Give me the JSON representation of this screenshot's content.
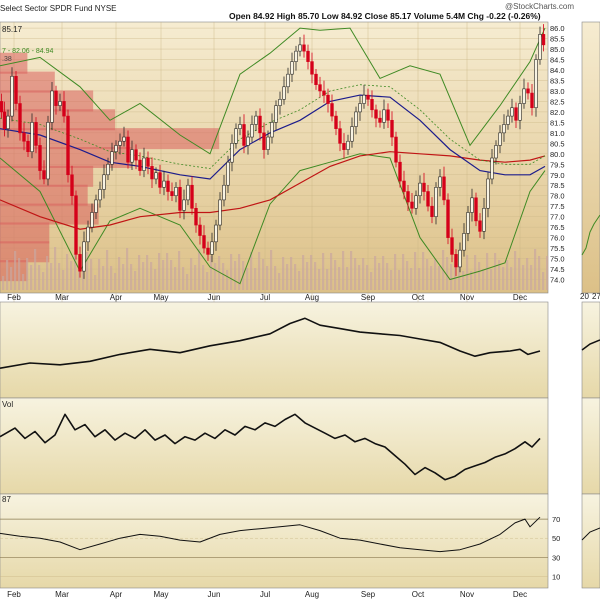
{
  "header": {
    "title": "Select Sector SPDR Fund",
    "exchange": "NYSE",
    "quote": "Open 84.92  High 85.70  Low 84.92  Close 85.17  Volume 5.4M  Chg -0.22 (-0.26%)",
    "watermark": "@StockCharts.com",
    "last_price": "85.17",
    "bb_legend": "7 - 82.06 - 84.94",
    "bb_legend_prefix": ".38"
  },
  "panels": {
    "obv_label": "",
    "vol_label": "Vol",
    "rsi_label": "87"
  },
  "colors": {
    "panel_bg_top": "#f5e9c8",
    "panel_bg_bottom": "#e3c98c",
    "up_candle": "#2a2a2a",
    "down_candle": "#d5001a",
    "bb_color": "#3f8a24",
    "ma_fast": "#1c1c8c",
    "ma_slow": "#c01515",
    "volume_profile": "#d8605c"
  },
  "chart_data": [
    {
      "type": "candlestick",
      "name": "price",
      "x_axis": [
        "Feb",
        "Mar",
        "Apr",
        "May",
        "Jun",
        "Jul",
        "Aug",
        "Sep",
        "Oct",
        "Nov",
        "Dec"
      ],
      "y_axis": [
        "74.0",
        "74.5",
        "75.0",
        "75.5",
        "76.0",
        "76.5",
        "77.0",
        "77.5",
        "78.0",
        "78.5",
        "79.0",
        "79.5",
        "80.0",
        "80.5",
        "81.0",
        "81.5",
        "82.0",
        "82.5",
        "83.0",
        "83.5",
        "84.0",
        "84.5",
        "85.0",
        "85.5",
        "86.0"
      ],
      "ylim": [
        73.5,
        86.1
      ],
      "close_path": [
        [
          0,
          82.5
        ],
        [
          3,
          82.0
        ],
        [
          6,
          81.2
        ],
        [
          10,
          81.8
        ],
        [
          14,
          83.7
        ],
        [
          18,
          82.4
        ],
        [
          22,
          81.0
        ],
        [
          26,
          80.6
        ],
        [
          30,
          80.1
        ],
        [
          34,
          81.5
        ],
        [
          38,
          80.4
        ],
        [
          42,
          79.2
        ],
        [
          46,
          78.8
        ],
        [
          50,
          81.5
        ],
        [
          54,
          83.0
        ],
        [
          58,
          82.3
        ],
        [
          62,
          82.5
        ],
        [
          66,
          81.8
        ],
        [
          70,
          79.0
        ],
        [
          74,
          78.0
        ],
        [
          78,
          75.2
        ],
        [
          82,
          74.4
        ],
        [
          86,
          75.8
        ],
        [
          90,
          76.5
        ],
        [
          94,
          77.2
        ],
        [
          98,
          77.8
        ],
        [
          102,
          78.3
        ],
        [
          106,
          79.0
        ],
        [
          110,
          79.5
        ],
        [
          114,
          80.1
        ],
        [
          118,
          80.4
        ],
        [
          122,
          80.6
        ],
        [
          126,
          80.8
        ],
        [
          130,
          79.6
        ],
        [
          134,
          80.2
        ],
        [
          138,
          79.7
        ],
        [
          142,
          79.2
        ],
        [
          146,
          79.8
        ],
        [
          150,
          79.4
        ],
        [
          154,
          78.8
        ],
        [
          158,
          79.1
        ],
        [
          162,
          78.4
        ],
        [
          166,
          78.7
        ],
        [
          170,
          78.2
        ],
        [
          174,
          78.0
        ],
        [
          178,
          78.4
        ],
        [
          182,
          77.3
        ],
        [
          186,
          77.8
        ],
        [
          190,
          78.5
        ],
        [
          194,
          77.4
        ],
        [
          198,
          76.6
        ],
        [
          202,
          76.1
        ],
        [
          206,
          75.5
        ],
        [
          210,
          75.2
        ],
        [
          214,
          75.8
        ],
        [
          218,
          76.6
        ],
        [
          222,
          77.8
        ],
        [
          226,
          78.5
        ],
        [
          230,
          79.6
        ],
        [
          234,
          80.5
        ],
        [
          238,
          81.2
        ],
        [
          242,
          81.4
        ],
        [
          246,
          80.4
        ],
        [
          250,
          80.8
        ],
        [
          254,
          81.4
        ],
        [
          258,
          81.8
        ],
        [
          262,
          81.0
        ],
        [
          266,
          80.2
        ],
        [
          270,
          80.8
        ],
        [
          274,
          81.5
        ],
        [
          278,
          82.3
        ],
        [
          282,
          82.6
        ],
        [
          286,
          83.2
        ],
        [
          290,
          83.8
        ],
        [
          294,
          84.4
        ],
        [
          298,
          84.9
        ],
        [
          302,
          85.2
        ],
        [
          306,
          84.9
        ],
        [
          310,
          84.4
        ],
        [
          314,
          83.8
        ],
        [
          318,
          83.3
        ],
        [
          322,
          83.0
        ],
        [
          326,
          82.8
        ],
        [
          330,
          82.4
        ],
        [
          334,
          81.8
        ],
        [
          338,
          81.2
        ],
        [
          342,
          80.5
        ],
        [
          346,
          80.2
        ],
        [
          350,
          80.6
        ],
        [
          354,
          81.3
        ],
        [
          358,
          82.0
        ],
        [
          362,
          82.4
        ],
        [
          366,
          82.8
        ],
        [
          370,
          82.6
        ],
        [
          374,
          82.1
        ],
        [
          378,
          81.7
        ],
        [
          382,
          81.5
        ],
        [
          386,
          82.1
        ],
        [
          390,
          81.6
        ],
        [
          394,
          80.8
        ],
        [
          398,
          79.6
        ],
        [
          402,
          78.7
        ],
        [
          406,
          78.2
        ],
        [
          410,
          77.7
        ],
        [
          414,
          77.4
        ],
        [
          418,
          78.0
        ],
        [
          422,
          78.6
        ],
        [
          426,
          78.2
        ],
        [
          430,
          77.5
        ],
        [
          434,
          77.0
        ],
        [
          438,
          78.4
        ],
        [
          442,
          78.9
        ],
        [
          446,
          77.8
        ],
        [
          450,
          76.0
        ],
        [
          454,
          75.2
        ],
        [
          458,
          74.6
        ],
        [
          462,
          75.4
        ],
        [
          466,
          76.2
        ],
        [
          470,
          77.2
        ],
        [
          474,
          77.9
        ],
        [
          478,
          76.8
        ],
        [
          482,
          76.3
        ],
        [
          486,
          77.4
        ],
        [
          490,
          78.8
        ],
        [
          494,
          79.8
        ],
        [
          498,
          80.4
        ],
        [
          502,
          81.0
        ],
        [
          506,
          81.4
        ],
        [
          510,
          81.8
        ],
        [
          514,
          82.2
        ],
        [
          518,
          81.6
        ],
        [
          522,
          82.4
        ],
        [
          526,
          83.1
        ],
        [
          530,
          82.9
        ],
        [
          534,
          82.2
        ],
        [
          538,
          84.5
        ],
        [
          542,
          85.7
        ],
        [
          545,
          85.2
        ]
      ],
      "bollinger_upper": [
        [
          0,
          84.2
        ],
        [
          40,
          84.6
        ],
        [
          80,
          83.2
        ],
        [
          110,
          81.6
        ],
        [
          140,
          82.4
        ],
        [
          180,
          80.9
        ],
        [
          210,
          80.0
        ],
        [
          240,
          83.8
        ],
        [
          270,
          84.8
        ],
        [
          300,
          86.0
        ],
        [
          320,
          85.9
        ],
        [
          350,
          86.0
        ],
        [
          380,
          83.6
        ],
        [
          410,
          84.2
        ],
        [
          440,
          83.8
        ],
        [
          470,
          80.4
        ],
        [
          500,
          82.3
        ],
        [
          530,
          84.4
        ],
        [
          545,
          86.0
        ]
      ],
      "bollinger_lower": [
        [
          0,
          79.8
        ],
        [
          40,
          78.2
        ],
        [
          80,
          74.4
        ],
        [
          110,
          76.8
        ],
        [
          140,
          77.4
        ],
        [
          180,
          76.6
        ],
        [
          210,
          74.6
        ],
        [
          240,
          73.8
        ],
        [
          270,
          77.6
        ],
        [
          300,
          79.2
        ],
        [
          330,
          79.6
        ],
        [
          360,
          80.0
        ],
        [
          390,
          79.8
        ],
        [
          420,
          76.0
        ],
        [
          450,
          74.0
        ],
        [
          480,
          74.4
        ],
        [
          505,
          74.8
        ],
        [
          530,
          78.2
        ],
        [
          545,
          79.2
        ]
      ],
      "ma_fast_path": [
        [
          0,
          81.2
        ],
        [
          40,
          80.9
        ],
        [
          80,
          80.2
        ],
        [
          110,
          79.6
        ],
        [
          140,
          79.4
        ],
        [
          180,
          79.0
        ],
        [
          210,
          78.8
        ],
        [
          240,
          80.2
        ],
        [
          270,
          81.0
        ],
        [
          300,
          81.6
        ],
        [
          330,
          82.5
        ],
        [
          360,
          82.8
        ],
        [
          390,
          82.7
        ],
        [
          420,
          81.6
        ],
        [
          450,
          80.2
        ],
        [
          480,
          79.2
        ],
        [
          505,
          79.0
        ],
        [
          530,
          79.0
        ],
        [
          545,
          79.4
        ]
      ],
      "ma_slow_path": [
        [
          0,
          77.8
        ],
        [
          40,
          77.0
        ],
        [
          80,
          76.4
        ],
        [
          110,
          76.6
        ],
        [
          140,
          77.0
        ],
        [
          180,
          77.2
        ],
        [
          210,
          77.2
        ],
        [
          240,
          77.4
        ],
        [
          270,
          77.8
        ],
        [
          300,
          78.6
        ],
        [
          330,
          79.4
        ],
        [
          360,
          79.9
        ],
        [
          390,
          80.1
        ],
        [
          420,
          80.0
        ],
        [
          450,
          79.9
        ],
        [
          480,
          79.7
        ],
        [
          505,
          79.6
        ],
        [
          530,
          79.7
        ],
        [
          545,
          79.9
        ]
      ],
      "volume_profile": [
        {
          "price": 74.4,
          "width": 0.05
        },
        {
          "price": 75.3,
          "width": 0.09
        },
        {
          "price": 76.2,
          "width": 0.09
        },
        {
          "price": 77.1,
          "width": 0.18
        },
        {
          "price": 78.0,
          "width": 0.16
        },
        {
          "price": 78.9,
          "width": 0.17
        },
        {
          "price": 79.8,
          "width": 0.24
        },
        {
          "price": 80.7,
          "width": 0.4
        },
        {
          "price": 81.6,
          "width": 0.21
        },
        {
          "price": 82.5,
          "width": 0.17
        },
        {
          "price": 83.4,
          "width": 0.1
        },
        {
          "price": 84.3,
          "width": 0.05
        }
      ]
    },
    {
      "type": "line",
      "name": "obv",
      "ylim": [
        0,
        100
      ],
      "points": [
        [
          0,
          30
        ],
        [
          30,
          36
        ],
        [
          60,
          34
        ],
        [
          90,
          38
        ],
        [
          120,
          46
        ],
        [
          150,
          52
        ],
        [
          180,
          48
        ],
        [
          210,
          56
        ],
        [
          240,
          62
        ],
        [
          270,
          70
        ],
        [
          290,
          82
        ],
        [
          305,
          88
        ],
        [
          320,
          80
        ],
        [
          340,
          76
        ],
        [
          360,
          72
        ],
        [
          380,
          70
        ],
        [
          400,
          68
        ],
        [
          420,
          64
        ],
        [
          440,
          60
        ],
        [
          460,
          50
        ],
        [
          475,
          44
        ],
        [
          490,
          48
        ],
        [
          510,
          50
        ],
        [
          520,
          52
        ],
        [
          528,
          46
        ],
        [
          540,
          50
        ]
      ]
    },
    {
      "type": "line",
      "name": "vol",
      "ylim": [
        0,
        100
      ],
      "points": [
        [
          0,
          62
        ],
        [
          15,
          72
        ],
        [
          25,
          60
        ],
        [
          35,
          68
        ],
        [
          45,
          55
        ],
        [
          55,
          64
        ],
        [
          65,
          88
        ],
        [
          75,
          70
        ],
        [
          85,
          76
        ],
        [
          95,
          62
        ],
        [
          105,
          70
        ],
        [
          115,
          58
        ],
        [
          125,
          66
        ],
        [
          135,
          60
        ],
        [
          145,
          70
        ],
        [
          155,
          58
        ],
        [
          165,
          64
        ],
        [
          175,
          54
        ],
        [
          185,
          62
        ],
        [
          195,
          58
        ],
        [
          205,
          66
        ],
        [
          215,
          60
        ],
        [
          225,
          70
        ],
        [
          235,
          64
        ],
        [
          245,
          74
        ],
        [
          255,
          70
        ],
        [
          265,
          78
        ],
        [
          275,
          74
        ],
        [
          285,
          82
        ],
        [
          295,
          88
        ],
        [
          305,
          78
        ],
        [
          315,
          72
        ],
        [
          325,
          66
        ],
        [
          335,
          60
        ],
        [
          345,
          64
        ],
        [
          355,
          56
        ],
        [
          365,
          60
        ],
        [
          375,
          54
        ],
        [
          385,
          50
        ],
        [
          395,
          40
        ],
        [
          405,
          30
        ],
        [
          415,
          18
        ],
        [
          425,
          26
        ],
        [
          435,
          20
        ],
        [
          445,
          12
        ],
        [
          455,
          16
        ],
        [
          465,
          24
        ],
        [
          475,
          28
        ],
        [
          485,
          32
        ],
        [
          495,
          38
        ],
        [
          505,
          42
        ],
        [
          515,
          48
        ],
        [
          525,
          56
        ],
        [
          532,
          50
        ],
        [
          540,
          60
        ]
      ]
    },
    {
      "type": "line",
      "name": "rsi",
      "y_axis": [
        "10",
        "30",
        "50",
        "70"
      ],
      "ylim": [
        0,
        90
      ],
      "points": [
        [
          0,
          55
        ],
        [
          20,
          52
        ],
        [
          40,
          50
        ],
        [
          60,
          46
        ],
        [
          80,
          38
        ],
        [
          100,
          44
        ],
        [
          120,
          50
        ],
        [
          140,
          54
        ],
        [
          160,
          52
        ],
        [
          180,
          48
        ],
        [
          200,
          46
        ],
        [
          220,
          54
        ],
        [
          240,
          58
        ],
        [
          260,
          60
        ],
        [
          280,
          62
        ],
        [
          300,
          64
        ],
        [
          320,
          58
        ],
        [
          340,
          50
        ],
        [
          360,
          48
        ],
        [
          380,
          44
        ],
        [
          400,
          40
        ],
        [
          420,
          38
        ],
        [
          440,
          36
        ],
        [
          460,
          38
        ],
        [
          480,
          44
        ],
        [
          500,
          54
        ],
        [
          515,
          66
        ],
        [
          525,
          70
        ],
        [
          530,
          62
        ],
        [
          540,
          72
        ]
      ]
    }
  ]
}
